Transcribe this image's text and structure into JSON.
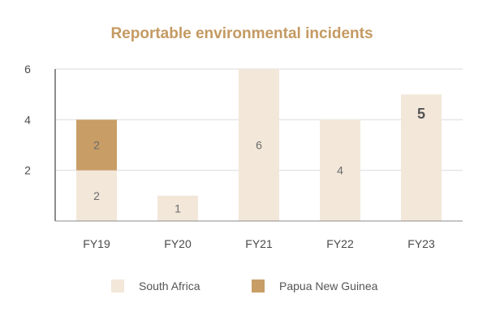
{
  "chart_data": {
    "type": "bar",
    "stacked": true,
    "title": "Reportable environmental incidents",
    "categories": [
      "FY19",
      "FY20",
      "FY21",
      "FY22",
      "FY23"
    ],
    "series": [
      {
        "name": "South Africa",
        "values": [
          2,
          1,
          6,
          4,
          5
        ],
        "color": "#f2e7d9"
      },
      {
        "name": "Papua New Guinea",
        "values": [
          2,
          0,
          0,
          0,
          0
        ],
        "color": "#c89e66"
      }
    ],
    "data_labels": {
      "South Africa": [
        "2",
        "1",
        "6",
        "4",
        "5"
      ],
      "Papua New Guinea": [
        "2",
        "",
        "",
        "",
        ""
      ]
    },
    "bold_labels": [
      "FY23"
    ],
    "yticks": [
      "2",
      "4",
      "6"
    ],
    "ylim": [
      0,
      6
    ],
    "grid": true,
    "legend_position": "bottom",
    "xlabel": "",
    "ylabel": ""
  },
  "colors": {
    "title": "#c49a62",
    "grid": "#e6e6e6",
    "axis": "#8c8c8c"
  }
}
